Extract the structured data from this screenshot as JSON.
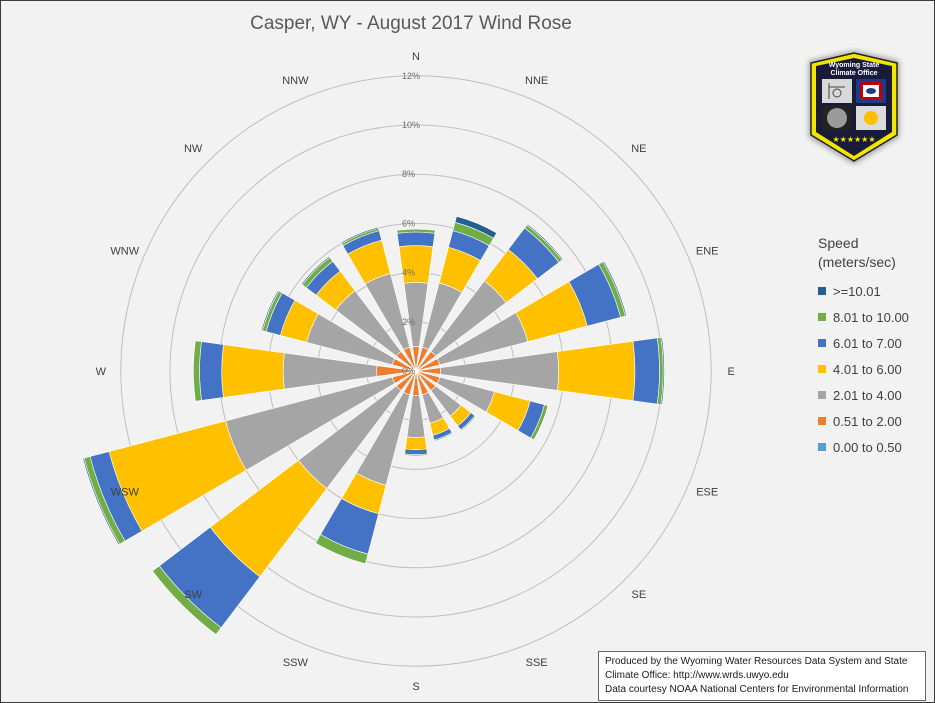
{
  "chart_data": {
    "type": "wind-rose",
    "title": "Casper, WY - August 2017 Wind Rose",
    "radial_ticks": [
      "0%",
      "2%",
      "4%",
      "6%",
      "8%",
      "10%",
      "12%"
    ],
    "radial_max_percent": 12,
    "directions": [
      "N",
      "NNE",
      "NE",
      "ENE",
      "E",
      "ESE",
      "SE",
      "SSE",
      "S",
      "SSW",
      "SW",
      "WSW",
      "W",
      "WNW",
      "NW",
      "NNW"
    ],
    "legend_title": [
      "Speed",
      "(meters/sec)"
    ],
    "series": [
      {
        "name": "0.00 to 0.50",
        "color": "#5b9bd5",
        "values": [
          0.05,
          0.05,
          0.05,
          0.05,
          0.05,
          0.05,
          0.05,
          0.05,
          0.05,
          0.05,
          0.05,
          0.05,
          0.05,
          0.05,
          0.05,
          0.05
        ]
      },
      {
        "name": "0.51 to 2.00",
        "color": "#ed7d31",
        "values": [
          0.95,
          0.95,
          0.95,
          0.95,
          0.95,
          0.95,
          0.95,
          0.95,
          0.95,
          0.95,
          0.95,
          0.95,
          1.55,
          0.95,
          0.95,
          0.95
        ]
      },
      {
        "name": "2.01 to 4.00",
        "color": "#a5a5a5",
        "values": [
          2.6,
          2.7,
          3.6,
          3.7,
          4.8,
          2.3,
          1.3,
          1.2,
          1.7,
          3.8,
          5.0,
          7.0,
          3.8,
          3.6,
          3.1,
          3.1
        ]
      },
      {
        "name": "4.01 to 6.00",
        "color": "#ffc000",
        "values": [
          1.5,
          1.5,
          1.6,
          2.5,
          3.1,
          1.5,
          0.5,
          0.5,
          0.5,
          1.2,
          4.5,
          4.9,
          2.5,
          1.1,
          1.0,
          1.4
        ]
      },
      {
        "name": "6.01 to 7.00",
        "color": "#4472c4",
        "values": [
          0.55,
          0.7,
          1.1,
          1.4,
          1.0,
          0.6,
          0.2,
          0.2,
          0.2,
          1.7,
          2.6,
          0.8,
          0.9,
          0.6,
          0.5,
          0.4
        ]
      },
      {
        "name": "8.01 to 10.00",
        "color": "#70ad47",
        "values": [
          0.12,
          0.35,
          0.15,
          0.2,
          0.15,
          0.15,
          0.05,
          0.05,
          0.05,
          0.4,
          0.35,
          0.25,
          0.25,
          0.15,
          0.2,
          0.1
        ]
      },
      {
        "name": ">=10.01",
        "color": "#255e91",
        "values": [
          0.0,
          0.25,
          0.05,
          0.05,
          0.05,
          0.02,
          0.0,
          0.0,
          0.0,
          0.0,
          0.0,
          0.05,
          0.0,
          0.05,
          0.05,
          0.05
        ]
      }
    ],
    "legend_order": [
      ">=10.01",
      "8.01 to 10.00",
      "6.01 to 7.00",
      "4.01 to 6.00",
      "2.01 to 4.00",
      "0.51 to 2.00",
      "0.00 to 0.50"
    ],
    "grid": true
  },
  "logo": {
    "line1": "Wyoming State",
    "line2": "Climate Office",
    "icon": "wyoming-state-climate-office-shield"
  },
  "credit": {
    "line1": "Produced by the Wyoming Water Resources Data System and State",
    "line2": "Climate Office: http://www.wrds.uwyo.edu",
    "line3": "Data courtesy NOAA National Centers for Environmental Information"
  }
}
